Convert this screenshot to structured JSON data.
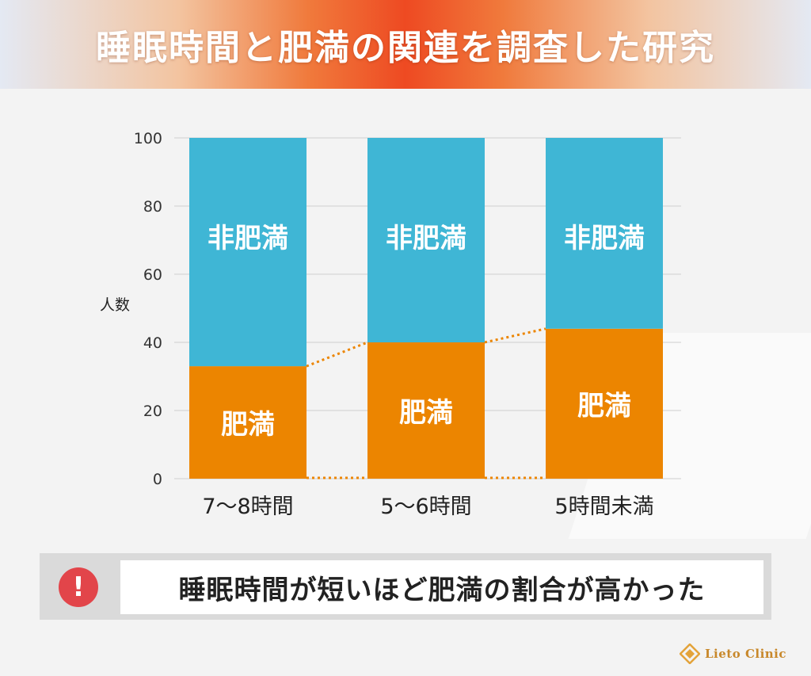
{
  "header": {
    "title": "睡眠時間と肥満の関連を調査した研究"
  },
  "chart_data": {
    "type": "bar",
    "stacked": true,
    "categories": [
      "7〜8時間",
      "5〜6時間",
      "5時間未満"
    ],
    "series": [
      {
        "name": "肥満",
        "values": [
          33,
          40,
          44
        ],
        "color": "#ec8500"
      },
      {
        "name": "非肥満",
        "values": [
          67,
          60,
          56
        ],
        "color": "#3fb6d5"
      }
    ],
    "ylabel": "人数",
    "ylim": [
      0,
      100
    ],
    "yticks": [
      0,
      20,
      40,
      60,
      80,
      100
    ],
    "grid": true
  },
  "callout": {
    "text": "睡眠時間が短いほど肥満の割合が高かった",
    "icon": "exclamation-icon",
    "icon_glyph": "!"
  },
  "brand": {
    "name": "Lieto Clinic"
  }
}
